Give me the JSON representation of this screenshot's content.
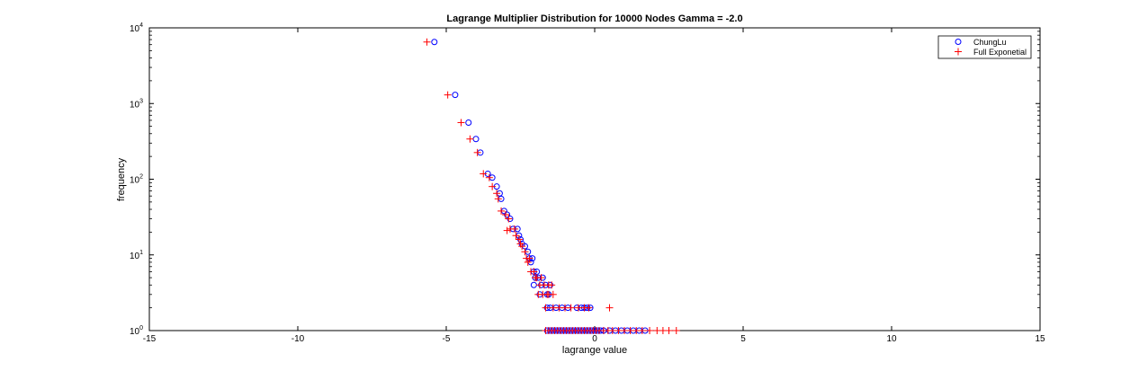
{
  "chart_data": {
    "type": "scatter",
    "title": "Lagrange Multiplier Distribution for 10000 Nodes Gamma = -2.0",
    "xlabel": "lagrange value",
    "ylabel": "frequency",
    "xlim": [
      -15,
      15
    ],
    "ylim": [
      1,
      10000
    ],
    "yscale": "log",
    "xticks": [
      "-15",
      "-10",
      "-5",
      "0",
      "5",
      "10",
      "15"
    ],
    "yticks": [
      {
        "base": "10",
        "exp": "0"
      },
      {
        "base": "10",
        "exp": "1"
      },
      {
        "base": "10",
        "exp": "2"
      },
      {
        "base": "10",
        "exp": "3"
      },
      {
        "base": "10",
        "exp": "4"
      }
    ],
    "legend": "top-right",
    "series": [
      {
        "name": "ChungLu",
        "marker": "circle",
        "color": "#0000ff",
        "points": [
          [
            -5.4,
            6500
          ],
          [
            -4.7,
            1300
          ],
          [
            -4.25,
            560
          ],
          [
            -4.0,
            340
          ],
          [
            -3.85,
            225
          ],
          [
            -3.6,
            118
          ],
          [
            -3.45,
            105
          ],
          [
            -3.3,
            80
          ],
          [
            -3.2,
            65
          ],
          [
            -3.15,
            55
          ],
          [
            -3.05,
            38
          ],
          [
            -2.95,
            34
          ],
          [
            -2.85,
            30
          ],
          [
            -2.75,
            22
          ],
          [
            -2.6,
            22
          ],
          [
            -2.55,
            18
          ],
          [
            -2.5,
            16
          ],
          [
            -2.45,
            14
          ],
          [
            -2.35,
            13
          ],
          [
            -2.25,
            11
          ],
          [
            -2.2,
            9
          ],
          [
            -2.1,
            9
          ],
          [
            -2.15,
            8
          ],
          [
            -2.05,
            6
          ],
          [
            -1.95,
            6
          ],
          [
            -2.0,
            5
          ],
          [
            -1.9,
            5
          ],
          [
            -1.75,
            5
          ],
          [
            -1.8,
            4
          ],
          [
            -1.65,
            4
          ],
          [
            -1.5,
            4
          ],
          [
            -2.05,
            4
          ],
          [
            -1.85,
            3
          ],
          [
            -1.6,
            3
          ],
          [
            -1.55,
            3
          ],
          [
            -1.6,
            2
          ],
          [
            -1.5,
            2
          ],
          [
            -1.3,
            2
          ],
          [
            -1.1,
            2
          ],
          [
            -0.9,
            2
          ],
          [
            -0.6,
            2
          ],
          [
            -0.45,
            2
          ],
          [
            -0.35,
            2
          ],
          [
            -0.15,
            2
          ],
          [
            -0.25,
            2
          ],
          [
            -1.6,
            1
          ],
          [
            -1.5,
            1
          ],
          [
            -1.4,
            1
          ],
          [
            -1.3,
            1
          ],
          [
            -1.2,
            1
          ],
          [
            -1.1,
            1
          ],
          [
            -1.0,
            1
          ],
          [
            -0.9,
            1
          ],
          [
            -0.8,
            1
          ],
          [
            -0.7,
            1
          ],
          [
            -0.6,
            1
          ],
          [
            -0.5,
            1
          ],
          [
            -0.4,
            1
          ],
          [
            -0.3,
            1
          ],
          [
            -0.2,
            1
          ],
          [
            -0.1,
            1
          ],
          [
            0.0,
            1
          ],
          [
            0.1,
            1
          ],
          [
            0.2,
            1
          ],
          [
            0.3,
            1
          ],
          [
            0.5,
            1
          ],
          [
            0.7,
            1
          ],
          [
            0.9,
            1
          ],
          [
            1.1,
            1
          ],
          [
            1.3,
            1
          ],
          [
            1.5,
            1
          ],
          [
            1.7,
            1
          ]
        ]
      },
      {
        "name": "Full Exponetial",
        "marker": "plus",
        "color": "#ff0000",
        "points": [
          [
            -5.65,
            6500
          ],
          [
            -4.95,
            1300
          ],
          [
            -4.5,
            560
          ],
          [
            -4.2,
            340
          ],
          [
            -3.95,
            225
          ],
          [
            -3.75,
            118
          ],
          [
            -3.55,
            105
          ],
          [
            -3.45,
            80
          ],
          [
            -3.3,
            65
          ],
          [
            -3.25,
            55
          ],
          [
            -3.15,
            38
          ],
          [
            -3.0,
            34
          ],
          [
            -2.9,
            30
          ],
          [
            -2.85,
            22
          ],
          [
            -2.7,
            22
          ],
          [
            -2.95,
            21
          ],
          [
            -2.65,
            18
          ],
          [
            -2.55,
            16
          ],
          [
            -2.5,
            14
          ],
          [
            -2.45,
            13
          ],
          [
            -2.35,
            11
          ],
          [
            -2.3,
            9
          ],
          [
            -2.2,
            9
          ],
          [
            -2.25,
            8
          ],
          [
            -2.15,
            6
          ],
          [
            -2.05,
            6
          ],
          [
            -2.0,
            5
          ],
          [
            -1.95,
            5
          ],
          [
            -1.8,
            5
          ],
          [
            -1.85,
            4
          ],
          [
            -1.7,
            4
          ],
          [
            -1.55,
            4
          ],
          [
            -1.45,
            4
          ],
          [
            -1.9,
            3
          ],
          [
            -1.75,
            3
          ],
          [
            -1.6,
            3
          ],
          [
            -1.55,
            3
          ],
          [
            -1.4,
            3
          ],
          [
            -1.65,
            2
          ],
          [
            -1.4,
            2
          ],
          [
            -1.2,
            2
          ],
          [
            -1.0,
            2
          ],
          [
            -0.8,
            2
          ],
          [
            -0.55,
            2
          ],
          [
            -0.35,
            2
          ],
          [
            -0.2,
            2
          ],
          [
            0.5,
            2
          ],
          [
            -1.65,
            1
          ],
          [
            -1.55,
            1
          ],
          [
            -1.45,
            1
          ],
          [
            -1.35,
            1
          ],
          [
            -1.25,
            1
          ],
          [
            -1.15,
            1
          ],
          [
            -1.05,
            1
          ],
          [
            -0.95,
            1
          ],
          [
            -0.85,
            1
          ],
          [
            -0.75,
            1
          ],
          [
            -0.65,
            1
          ],
          [
            -0.55,
            1
          ],
          [
            -0.45,
            1
          ],
          [
            -0.35,
            1
          ],
          [
            -0.25,
            1
          ],
          [
            -0.15,
            1
          ],
          [
            -0.05,
            1
          ],
          [
            0.05,
            1
          ],
          [
            0.15,
            1
          ],
          [
            0.3,
            1
          ],
          [
            0.45,
            1
          ],
          [
            0.6,
            1
          ],
          [
            0.8,
            1
          ],
          [
            1.0,
            1
          ],
          [
            1.2,
            1
          ],
          [
            1.4,
            1
          ],
          [
            1.6,
            1
          ],
          [
            1.85,
            1
          ],
          [
            2.1,
            1
          ],
          [
            2.3,
            1
          ],
          [
            2.5,
            1
          ],
          [
            2.75,
            1
          ]
        ]
      }
    ]
  }
}
